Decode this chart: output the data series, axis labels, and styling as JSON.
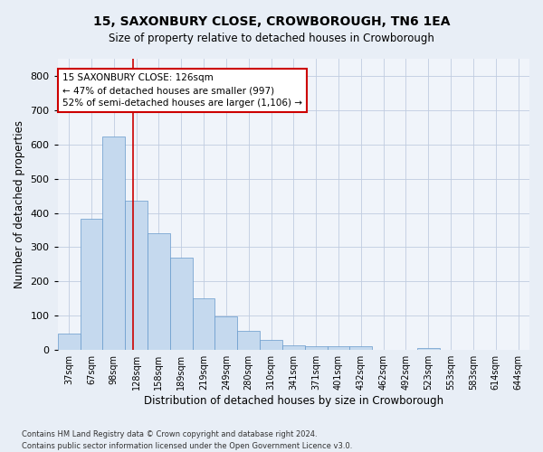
{
  "title": "15, SAXONBURY CLOSE, CROWBOROUGH, TN6 1EA",
  "subtitle": "Size of property relative to detached houses in Crowborough",
  "xlabel": "Distribution of detached houses by size in Crowborough",
  "ylabel": "Number of detached properties",
  "categories": [
    "37sqm",
    "67sqm",
    "98sqm",
    "128sqm",
    "158sqm",
    "189sqm",
    "219sqm",
    "249sqm",
    "280sqm",
    "310sqm",
    "341sqm",
    "371sqm",
    "401sqm",
    "432sqm",
    "462sqm",
    "492sqm",
    "523sqm",
    "553sqm",
    "583sqm",
    "614sqm",
    "644sqm"
  ],
  "values": [
    47,
    383,
    623,
    435,
    340,
    270,
    152,
    97,
    55,
    30,
    14,
    10,
    10,
    10,
    0,
    0,
    5,
    0,
    0,
    0,
    0
  ],
  "bar_color": "#c5d9ee",
  "bar_edge_color": "#6699cc",
  "vline_x": 2.85,
  "vline_color": "#cc0000",
  "annotation_text": "15 SAXONBURY CLOSE: 126sqm\n← 47% of detached houses are smaller (997)\n52% of semi-detached houses are larger (1,106) →",
  "annotation_box_color": "#cc0000",
  "ylim": [
    0,
    850
  ],
  "yticks": [
    0,
    100,
    200,
    300,
    400,
    500,
    600,
    700,
    800
  ],
  "footer": "Contains HM Land Registry data © Crown copyright and database right 2024.\nContains public sector information licensed under the Open Government Licence v3.0.",
  "bg_color": "#e8eef6",
  "plot_bg_color": "#f0f4fa",
  "grid_color": "#c0cce0"
}
